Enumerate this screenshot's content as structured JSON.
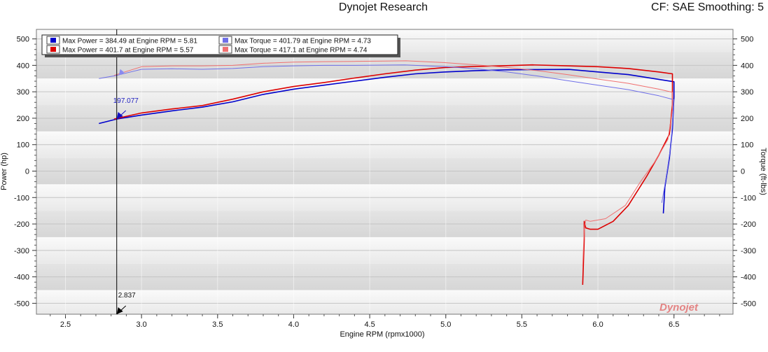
{
  "header": {
    "title": "Dynojet Research",
    "cf_label": "CF: SAE Smoothing: 5"
  },
  "brand": {
    "logo_text": "Dynojet"
  },
  "colors": {
    "power_run1": "#0000cc",
    "power_run2": "#dd0000",
    "torque_run1": "#6f6fe8",
    "torque_run2": "#f07070",
    "background_band_light": "#f2f2f2",
    "background_band_dark": "#dedede"
  },
  "chart_data": {
    "type": "line",
    "title": "Dynojet Research",
    "xlabel": "Engine RPM (rpmx1000)",
    "ylabel": "Power (hp)",
    "y2label": "Torque (ft-lbs)",
    "xlim": [
      2.25,
      7.0
    ],
    "ylim": [
      -530,
      530
    ],
    "x_ticks": [
      "2.5",
      "3.0",
      "3.5",
      "4.0",
      "4.5",
      "5.0",
      "5.5",
      "6.0",
      "6.5"
    ],
    "y_ticks": [
      "500",
      "400",
      "300",
      "200",
      "100",
      "0",
      "-100",
      "-200",
      "-300",
      "-400",
      "-500"
    ],
    "legend": [
      "Max Power = 384.49 at Engine RPM = 5.81",
      "Max Torque = 401.79 at Engine RPM = 4.73",
      "Max Power = 401.7 at Engine RPM = 5.57",
      "Max Torque = 417.1 at Engine RPM = 4.74"
    ],
    "legend_position": "top-left",
    "cursor": {
      "x": 2.837,
      "x_label": "2.837",
      "y": 197.077,
      "y_label": "197.077"
    },
    "series": [
      {
        "key": "power_run1",
        "points": [
          [
            2.72,
            180
          ],
          [
            2.837,
            197
          ],
          [
            3.0,
            212
          ],
          [
            3.2,
            228
          ],
          [
            3.4,
            242
          ],
          [
            3.6,
            262
          ],
          [
            3.8,
            290
          ],
          [
            4.0,
            310
          ],
          [
            4.2,
            325
          ],
          [
            4.4,
            340
          ],
          [
            4.6,
            355
          ],
          [
            4.8,
            368
          ],
          [
            5.0,
            375
          ],
          [
            5.2,
            380
          ],
          [
            5.4,
            383
          ],
          [
            5.6,
            384
          ],
          [
            5.81,
            384.5
          ],
          [
            6.0,
            375
          ],
          [
            6.2,
            365
          ],
          [
            6.4,
            347
          ],
          [
            6.5,
            338
          ],
          [
            6.5,
            280
          ],
          [
            6.49,
            160
          ],
          [
            6.47,
            50
          ],
          [
            6.44,
            -60
          ],
          [
            6.43,
            -160
          ]
        ]
      },
      {
        "key": "power_run2",
        "points": [
          [
            2.82,
            197
          ],
          [
            3.0,
            220
          ],
          [
            3.2,
            235
          ],
          [
            3.4,
            248
          ],
          [
            3.6,
            272
          ],
          [
            3.8,
            300
          ],
          [
            4.0,
            320
          ],
          [
            4.2,
            335
          ],
          [
            4.4,
            352
          ],
          [
            4.6,
            368
          ],
          [
            4.8,
            382
          ],
          [
            5.0,
            392
          ],
          [
            5.2,
            396
          ],
          [
            5.4,
            399
          ],
          [
            5.57,
            401.7
          ],
          [
            5.8,
            398
          ],
          [
            6.0,
            395
          ],
          [
            6.2,
            388
          ],
          [
            6.4,
            375
          ],
          [
            6.49,
            368
          ],
          [
            6.49,
            250
          ],
          [
            6.47,
            140
          ],
          [
            6.4,
            60
          ],
          [
            6.32,
            -20
          ],
          [
            6.2,
            -130
          ],
          [
            6.1,
            -190
          ],
          [
            6.0,
            -220
          ],
          [
            5.95,
            -220
          ],
          [
            5.92,
            -215
          ],
          [
            5.91,
            -190
          ],
          [
            5.91,
            -260
          ],
          [
            5.9,
            -430
          ]
        ]
      },
      {
        "key": "torque_run1",
        "points": [
          [
            2.72,
            350
          ],
          [
            2.837,
            362
          ],
          [
            2.95,
            378
          ],
          [
            3.0,
            385
          ],
          [
            3.2,
            387
          ],
          [
            3.4,
            385
          ],
          [
            3.6,
            388
          ],
          [
            3.8,
            395
          ],
          [
            4.0,
            398
          ],
          [
            4.2,
            400
          ],
          [
            4.4,
            400
          ],
          [
            4.6,
            401
          ],
          [
            4.73,
            401.79
          ],
          [
            5.0,
            395
          ],
          [
            5.2,
            387
          ],
          [
            5.4,
            375
          ],
          [
            5.6,
            360
          ],
          [
            5.8,
            342
          ],
          [
            6.0,
            325
          ],
          [
            6.2,
            308
          ],
          [
            6.4,
            285
          ],
          [
            6.5,
            270
          ],
          [
            6.48,
            100
          ],
          [
            6.45,
            -20
          ],
          [
            6.42,
            -120
          ]
        ]
      },
      {
        "key": "torque_run2",
        "points": [
          [
            2.82,
            362
          ],
          [
            3.0,
            395
          ],
          [
            3.2,
            398
          ],
          [
            3.4,
            398
          ],
          [
            3.6,
            400
          ],
          [
            3.8,
            408
          ],
          [
            4.0,
            412
          ],
          [
            4.2,
            414
          ],
          [
            4.4,
            415
          ],
          [
            4.6,
            416
          ],
          [
            4.74,
            417.1
          ],
          [
            5.0,
            410
          ],
          [
            5.2,
            402
          ],
          [
            5.4,
            392
          ],
          [
            5.6,
            380
          ],
          [
            5.8,
            365
          ],
          [
            6.0,
            348
          ],
          [
            6.2,
            332
          ],
          [
            6.4,
            310
          ],
          [
            6.49,
            298
          ],
          [
            6.49,
            230
          ],
          [
            6.46,
            120
          ],
          [
            6.38,
            40
          ],
          [
            6.28,
            -40
          ],
          [
            6.18,
            -130
          ],
          [
            6.05,
            -180
          ],
          [
            5.95,
            -190
          ],
          [
            5.92,
            -185
          ],
          [
            5.91,
            -220
          ],
          [
            5.9,
            -360
          ]
        ]
      }
    ]
  }
}
